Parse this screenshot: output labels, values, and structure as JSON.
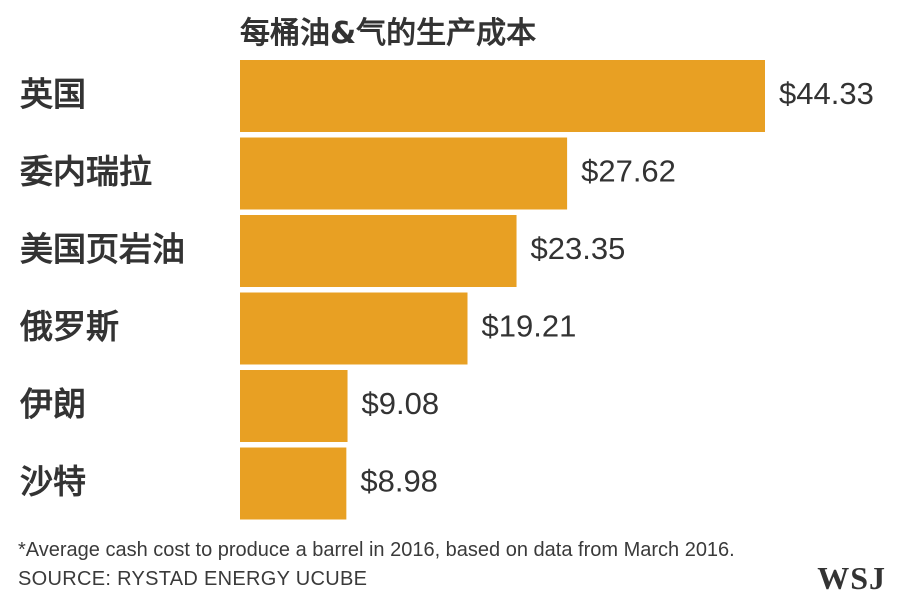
{
  "title": "每桶油&气的生产成本",
  "footnote": "*Average cash cost to produce a barrel in 2016, based on data from March 2016.",
  "source": "SOURCE: RYSTAD ENERGY UCUBE",
  "logo_text": "WSJ",
  "bar_color": "#e8a023",
  "chart_data": {
    "type": "bar",
    "orientation": "horizontal",
    "title": "每桶油&气的生产成本",
    "categories": [
      "英国",
      "委内瑞拉",
      "美国页岩油",
      "俄罗斯",
      "伊朗",
      "沙特"
    ],
    "values": [
      44.33,
      27.62,
      23.35,
      19.21,
      9.08,
      8.98
    ],
    "value_labels": [
      "$44.33",
      "$27.62",
      "$23.35",
      "$19.21",
      "$9.08",
      "$8.98"
    ],
    "xlim": [
      0,
      44.33
    ],
    "grid": false,
    "legend": "none"
  }
}
